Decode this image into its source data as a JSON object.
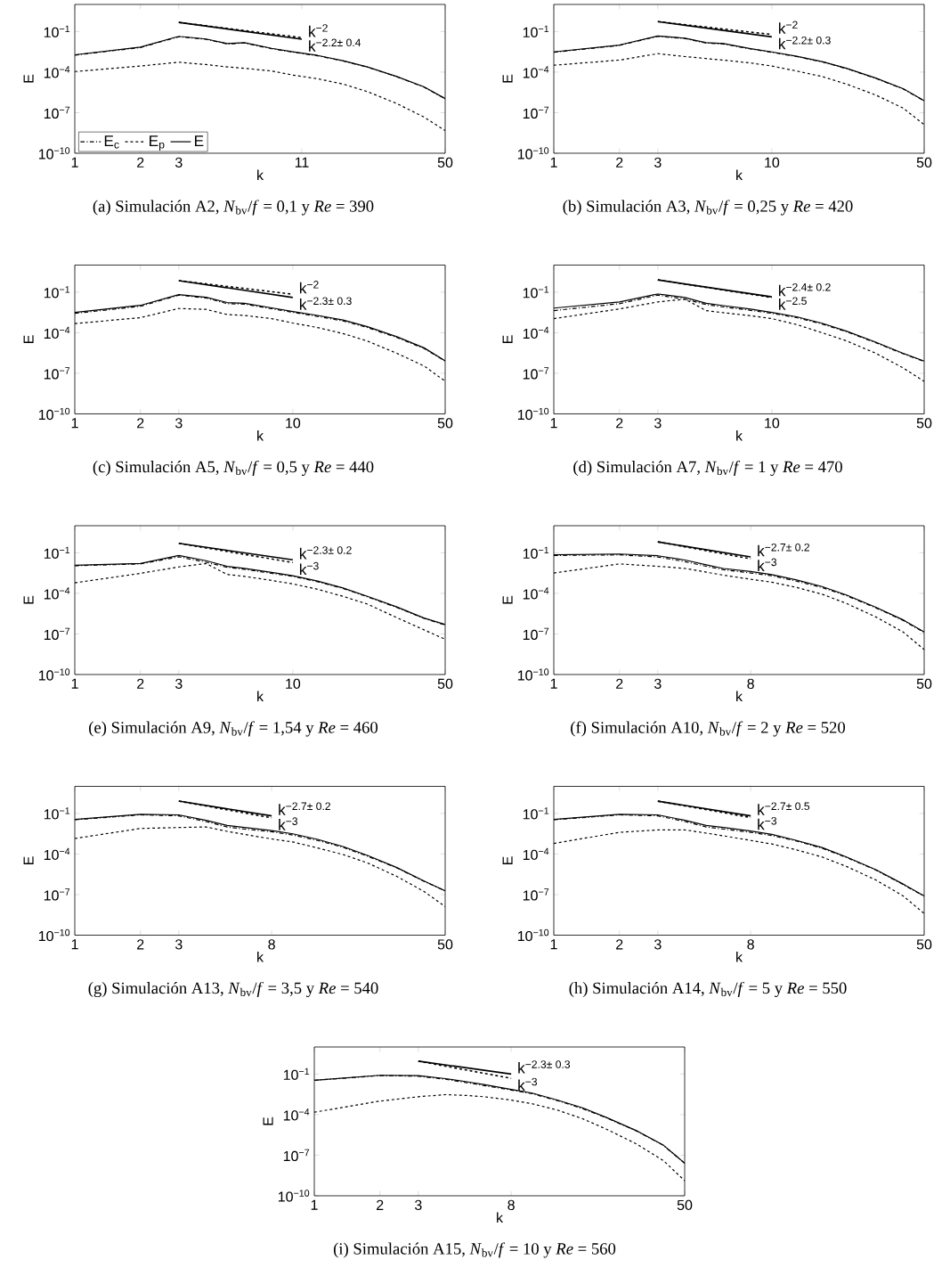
{
  "chart_data": [
    {
      "type": "line",
      "xlabel": "k",
      "ylabel": "E",
      "log": "xy",
      "xlim": [
        1,
        50
      ],
      "ylim": [
        1e-10,
        10
      ],
      "xticks": [
        1,
        2,
        3,
        11,
        50
      ],
      "yticks": [
        {
          "value": 1e-10,
          "label": "10$^{−10}$"
        },
        {
          "value": 1e-07,
          "label": "10$^{−7}$"
        },
        {
          "value": 0.0001,
          "label": "10$^{−4}$"
        },
        {
          "value": 0.1,
          "label": "10$^{−1}$"
        }
      ],
      "legend": "bottom left",
      "annotations": [
        "(a) Simulación A2, *N*$_{bv}$/*f* = 0,1 y *Re* = 390"
      ],
      "x": [
        1,
        2,
        3,
        4,
        5,
        6,
        8,
        10,
        13,
        17,
        22,
        30,
        40,
        50
      ],
      "series": [
        {
          "name": "E$_{c}$",
          "color": "#000000",
          "line_style": "dashdot",
          "values": [
            0.0018,
            0.0065,
            0.041,
            0.026,
            0.012,
            0.014,
            0.0053,
            0.003,
            0.0016,
            0.00066,
            0.00023,
            4.5e-05,
            7.7e-06,
            1.05e-06
          ]
        },
        {
          "name": "E$_{p}$",
          "color": "#000000",
          "line_style": "dotted",
          "values": [
            0.00011,
            0.00028,
            0.00054,
            0.00036,
            0.00024,
            0.00019,
            0.00012,
            6e-05,
            3.2e-05,
            1.3e-05,
            3.6e-06,
            4.7e-07,
            4.7e-08,
            4.7e-09
          ]
        },
        {
          "name": "E",
          "color": "#000000",
          "line_style": "solid",
          "values": [
            0.0019,
            0.007,
            0.044,
            0.028,
            0.013,
            0.015,
            0.0057,
            0.0032,
            0.0017,
            0.0007,
            0.00024,
            4.7e-05,
            8e-06,
            1.1e-06
          ]
        },
        {
          "name": "k$^{−2}$",
          "color": "#000000",
          "line_style": "dotted",
          "x": [
            3,
            11
          ],
          "values": [
            0.47,
            0.035
          ]
        },
        {
          "name": "k$^{−2.2± 0.4}$",
          "color": "#000000",
          "line_style": "solid",
          "x": [
            3,
            11
          ],
          "values": [
            0.47,
            0.027
          ]
        }
      ]
    },
    {
      "type": "line",
      "xlabel": "k",
      "ylabel": "E",
      "log": "xy",
      "xlim": [
        1,
        50
      ],
      "ylim": [
        1e-10,
        10
      ],
      "xticks": [
        1,
        2,
        3,
        10,
        50
      ],
      "yticks": [
        {
          "value": 1e-10,
          "label": "10$^{−10}$"
        },
        {
          "value": 1e-07,
          "label": "10$^{−7}$"
        },
        {
          "value": 0.0001,
          "label": "10$^{−4}$"
        },
        {
          "value": 0.1,
          "label": "10$^{−1}$"
        }
      ],
      "annotations": [
        "(b) Simulación A3, *N*$_{bv}$/*f* = 0,25 y *Re* = 420"
      ],
      "x": [
        1,
        2,
        3,
        4,
        5,
        6,
        8,
        10,
        13,
        17,
        22,
        30,
        40,
        50
      ],
      "series": [
        {
          "color": "#000000",
          "line_style": "dashdot",
          "values": [
            0.0029,
            0.0094,
            0.044,
            0.03,
            0.014,
            0.012,
            0.0051,
            0.0029,
            0.0014,
            0.00057,
            0.00018,
            3.4e-05,
            5.7e-06,
            7.4e-07
          ]
        },
        {
          "color": "#000000",
          "line_style": "dotted",
          "values": [
            0.00032,
            0.00077,
            0.0023,
            0.0014,
            0.001,
            0.00077,
            0.00047,
            0.00028,
            0.00012,
            4.7e-05,
            1.3e-05,
            2e-06,
            2.2e-07,
            1.3e-08
          ]
        },
        {
          "color": "#000000",
          "line_style": "solid",
          "values": [
            0.0031,
            0.01,
            0.047,
            0.032,
            0.015,
            0.013,
            0.0054,
            0.0031,
            0.0015,
            0.0006,
            0.00019,
            3.6e-05,
            6e-06,
            7.8e-07
          ]
        },
        {
          "name": "k$^{−2}$",
          "color": "#000000",
          "line_style": "dotted",
          "x": [
            3,
            10
          ],
          "values": [
            0.54,
            0.06
          ]
        },
        {
          "name": "k$^{−2.2± 0.3}$",
          "color": "#000000",
          "line_style": "solid",
          "x": [
            3,
            10
          ],
          "values": [
            0.54,
            0.04
          ]
        }
      ]
    },
    {
      "type": "line",
      "xlabel": "k",
      "ylabel": "E",
      "log": "xy",
      "xlim": [
        1,
        50
      ],
      "ylim": [
        1e-10,
        10
      ],
      "xticks": [
        1,
        2,
        3,
        10,
        50
      ],
      "yticks": [
        {
          "value": 1e-10,
          "label": "10$^{−10}$"
        },
        {
          "value": 1e-07,
          "label": "10$^{−7}$"
        },
        {
          "value": 0.0001,
          "label": "10$^{−4}$"
        },
        {
          "value": 0.1,
          "label": "10$^{−1}$"
        }
      ],
      "annotations": [
        "(c) Simulación A5, *N*$_{bv}$/*f* = 0,5 y *Re* = 440"
      ],
      "x": [
        1,
        2,
        3,
        4,
        5,
        6,
        8,
        10,
        13,
        17,
        22,
        30,
        40,
        50
      ],
      "series": [
        {
          "color": "#000000",
          "line_style": "dashdot",
          "values": [
            0.0027,
            0.0089,
            0.06,
            0.037,
            0.014,
            0.013,
            0.0059,
            0.0032,
            0.0016,
            0.00074,
            0.00024,
            4.4e-05,
            6.9e-06,
            8e-07
          ]
        },
        {
          "color": "#000000",
          "line_style": "dotted",
          "values": [
            0.00047,
            0.0013,
            0.0062,
            0.0053,
            0.0022,
            0.0019,
            0.0011,
            0.00052,
            0.00024,
            8.7e-05,
            2.4e-05,
            3e-06,
            3.5e-07,
            2.6e-08
          ]
        },
        {
          "color": "#000000",
          "line_style": "solid",
          "values": [
            0.0032,
            0.0105,
            0.066,
            0.042,
            0.017,
            0.015,
            0.0069,
            0.0037,
            0.0019,
            0.00087,
            0.00028,
            5.1e-05,
            7.6e-06,
            8.3e-07
          ]
        },
        {
          "name": "k$^{−2}$",
          "color": "#000000",
          "line_style": "dotted",
          "x": [
            3,
            10
          ],
          "values": [
            0.71,
            0.07
          ]
        },
        {
          "name": "k$^{−2.3± 0.3}$",
          "color": "#000000",
          "line_style": "solid",
          "x": [
            3,
            10
          ],
          "values": [
            0.71,
            0.04
          ]
        }
      ]
    },
    {
      "type": "line",
      "xlabel": "k",
      "ylabel": "E",
      "log": "xy",
      "xlim": [
        1,
        50
      ],
      "ylim": [
        1e-10,
        10
      ],
      "xticks": [
        1,
        2,
        3,
        10,
        50
      ],
      "yticks": [
        {
          "value": 1e-10,
          "label": "10$^{−10}$"
        },
        {
          "value": 1e-07,
          "label": "10$^{−7}$"
        },
        {
          "value": 0.0001,
          "label": "10$^{−4}$"
        },
        {
          "value": 0.1,
          "label": "10$^{−1}$"
        }
      ],
      "annotations": [
        "(d) Simulación A7, *N*$_{bv}$/*f* = 1 y *Re* = 470"
      ],
      "x": [
        1,
        2,
        3,
        4,
        5,
        6,
        8,
        10,
        13,
        17,
        22,
        30,
        40,
        50
      ],
      "series": [
        {
          "color": "#000000",
          "line_style": "dashdot",
          "values": [
            0.0043,
            0.014,
            0.06,
            0.03,
            0.012,
            0.008,
            0.0045,
            0.0027,
            0.0013,
            0.00044,
            0.00012,
            1.8e-05,
            2.8e-06,
            7.5e-07
          ]
        },
        {
          "color": "#000000",
          "line_style": "dotted",
          "values": [
            0.0011,
            0.0057,
            0.019,
            0.03,
            0.0043,
            0.003,
            0.0018,
            0.0011,
            0.0004,
            0.0001,
            2.5e-05,
            3e-06,
            2.5e-07,
            2.5e-08
          ]
        },
        {
          "color": "#000000",
          "line_style": "solid",
          "values": [
            0.0066,
            0.019,
            0.074,
            0.04,
            0.015,
            0.01,
            0.0055,
            0.0032,
            0.0015,
            0.0005,
            0.00013,
            2e-05,
            3e-06,
            8e-07
          ]
        },
        {
          "name": "k$^{−2.4± 0.2}$",
          "color": "#000000",
          "line_style": "solid",
          "x": [
            3,
            10
          ],
          "values": [
            0.8,
            0.045
          ]
        },
        {
          "name": "k$^{−2.5}$",
          "color": "#000000",
          "line_style": "dotted",
          "x": [
            3,
            10
          ],
          "values": [
            0.8,
            0.04
          ]
        }
      ]
    },
    {
      "type": "line",
      "xlabel": "k",
      "ylabel": "E",
      "log": "xy",
      "xlim": [
        1,
        50
      ],
      "ylim": [
        1e-10,
        10
      ],
      "xticks": [
        1,
        2,
        3,
        10,
        50
      ],
      "yticks": [
        {
          "value": 1e-10,
          "label": "10$^{−10}$"
        },
        {
          "value": 1e-07,
          "label": "10$^{−7}$"
        },
        {
          "value": 0.0001,
          "label": "10$^{−4}$"
        },
        {
          "value": 0.1,
          "label": "10$^{−1}$"
        }
      ],
      "annotations": [
        "(e) Simulación A9, *N*$_{bv}$/*f* = 1,54 y *Re* = 460"
      ],
      "x": [
        1,
        2,
        3,
        4,
        5,
        6,
        8,
        10,
        13,
        17,
        22,
        30,
        40,
        50
      ],
      "series": [
        {
          "color": "#000000",
          "line_style": "dashdot",
          "values": [
            0.011,
            0.015,
            0.05,
            0.02,
            0.0085,
            0.006,
            0.003,
            0.0018,
            0.00072,
            0.00023,
            5.5e-05,
            9e-06,
            1.4e-06,
            4.6e-07
          ]
        },
        {
          "color": "#000000",
          "line_style": "dotted",
          "values": [
            0.0006,
            0.003,
            0.009,
            0.016,
            0.0025,
            0.0018,
            0.0009,
            0.0005,
            0.0002,
            6e-05,
            1.6e-05,
            1.6e-06,
            2e-07,
            4e-08
          ]
        },
        {
          "color": "#000000",
          "line_style": "solid",
          "values": [
            0.012,
            0.016,
            0.063,
            0.026,
            0.01,
            0.007,
            0.0035,
            0.002,
            0.0008,
            0.00025,
            6e-05,
            1e-05,
            1.5e-06,
            5e-07
          ]
        },
        {
          "name": "k$^{−2.3± 0.2}$",
          "color": "#000000",
          "line_style": "solid",
          "x": [
            3,
            10
          ],
          "values": [
            0.5,
            0.03
          ]
        },
        {
          "name": "k$^{−3}$",
          "color": "#000000",
          "line_style": "dotted",
          "x": [
            3,
            10
          ],
          "values": [
            0.5,
            0.019
          ]
        }
      ]
    },
    {
      "type": "line",
      "xlabel": "k",
      "ylabel": "E",
      "log": "xy",
      "xlim": [
        1,
        50
      ],
      "ylim": [
        1e-10,
        10
      ],
      "xticks": [
        1,
        2,
        3,
        8,
        50
      ],
      "yticks": [
        {
          "value": 1e-10,
          "label": "10$^{−10}$"
        },
        {
          "value": 1e-07,
          "label": "10$^{−7}$"
        },
        {
          "value": 0.0001,
          "label": "10$^{−4}$"
        },
        {
          "value": 0.1,
          "label": "10$^{−1}$"
        }
      ],
      "annotations": [
        "(f) Simulación A10, *N*$_{bv}$/*f* = 2 y *Re* = 520"
      ],
      "x": [
        1,
        2,
        3,
        4,
        5,
        6,
        8,
        10,
        13,
        17,
        22,
        30,
        40,
        50
      ],
      "series": [
        {
          "color": "#000000",
          "line_style": "dashdot",
          "values": [
            0.063,
            0.07,
            0.049,
            0.022,
            0.01,
            0.0056,
            0.0032,
            0.002,
            0.00079,
            0.00027,
            6.7e-05,
            8.5e-06,
            1e-06,
            1.3e-07
          ]
        },
        {
          "color": "#000000",
          "line_style": "dotted",
          "values": [
            0.0032,
            0.015,
            0.01,
            0.0069,
            0.0037,
            0.0022,
            0.0011,
            0.00067,
            0.00027,
            8.7e-05,
            1.8e-05,
            1.8e-06,
            1.4e-07,
            6.9e-09
          ]
        },
        {
          "color": "#000000",
          "line_style": "solid",
          "values": [
            0.07,
            0.081,
            0.06,
            0.029,
            0.013,
            0.0069,
            0.0041,
            0.0024,
            0.00098,
            0.00032,
            7.5e-05,
            9.4e-06,
            1.1e-06,
            1.4e-07
          ]
        },
        {
          "name": "k$^{−2.7± 0.2}$",
          "color": "#000000",
          "line_style": "solid",
          "x": [
            3,
            8
          ],
          "values": [
            0.64,
            0.049
          ]
        },
        {
          "name": "k$^{−3}$",
          "color": "#000000",
          "line_style": "dotted",
          "x": [
            3,
            8
          ],
          "values": [
            0.64,
            0.036
          ]
        }
      ]
    },
    {
      "type": "line",
      "xlabel": "k",
      "ylabel": "E",
      "log": "xy",
      "xlim": [
        1,
        50
      ],
      "ylim": [
        1e-10,
        10
      ],
      "xticks": [
        1,
        2,
        3,
        8,
        50
      ],
      "yticks": [
        {
          "value": 1e-10,
          "label": "10$^{−10}$"
        },
        {
          "value": 1e-07,
          "label": "10$^{−7}$"
        },
        {
          "value": 0.0001,
          "label": "10$^{−4}$"
        },
        {
          "value": 0.1,
          "label": "10$^{−1}$"
        }
      ],
      "annotations": [
        "(g) Simulación A13, *N*$_{bv}$/*f* = 3,5 y *Re* = 540"
      ],
      "x": [
        1,
        2,
        3,
        4,
        5,
        6,
        8,
        10,
        13,
        17,
        22,
        30,
        40,
        50
      ],
      "series": [
        {
          "color": "#000000",
          "line_style": "dashdot",
          "values": [
            0.034,
            0.078,
            0.066,
            0.025,
            0.01,
            0.0069,
            0.0044,
            0.0025,
            0.001,
            0.00031,
            6.9e-05,
            9.5e-06,
            9.5e-07,
            1.9e-07
          ]
        },
        {
          "color": "#000000",
          "line_style": "dotted",
          "values": [
            0.0014,
            0.0077,
            0.0091,
            0.01,
            0.0047,
            0.0028,
            0.0013,
            0.00077,
            0.00028,
            9.1e-05,
            2.2e-05,
            2.2e-06,
            1.7e-07,
            1.3e-08
          ]
        },
        {
          "color": "#000000",
          "line_style": "solid",
          "values": [
            0.036,
            0.085,
            0.078,
            0.031,
            0.013,
            0.0091,
            0.0054,
            0.0031,
            0.0012,
            0.00036,
            7.8e-05,
            1e-05,
            1e-06,
            1.9e-07
          ]
        },
        {
          "name": "k$^{−2.7± 0.2}$",
          "color": "#000000",
          "line_style": "solid",
          "x": [
            3,
            8
          ],
          "values": [
            0.81,
            0.066
          ]
        },
        {
          "name": "k$^{−3}$",
          "color": "#000000",
          "line_style": "dotted",
          "x": [
            3,
            8
          ],
          "values": [
            0.81,
            0.047
          ]
        }
      ]
    },
    {
      "type": "line",
      "xlabel": "k",
      "ylabel": "E",
      "log": "xy",
      "xlim": [
        1,
        50
      ],
      "ylim": [
        1e-10,
        10
      ],
      "xticks": [
        1,
        2,
        3,
        8,
        50
      ],
      "yticks": [
        {
          "value": 1e-10,
          "label": "10$^{−10}$"
        },
        {
          "value": 1e-07,
          "label": "10$^{−7}$"
        },
        {
          "value": 0.0001,
          "label": "10$^{−4}$"
        },
        {
          "value": 0.1,
          "label": "10$^{−1}$"
        }
      ],
      "annotations": [
        "(h) Simulación A14, *N*$_{bv}$/*f* = 5 y *Re* = 550"
      ],
      "x": [
        1,
        2,
        3,
        4,
        5,
        6,
        8,
        10,
        13,
        17,
        22,
        30,
        40,
        50
      ],
      "series": [
        {
          "color": "#000000",
          "line_style": "dashdot",
          "values": [
            0.034,
            0.078,
            0.066,
            0.025,
            0.01,
            0.0069,
            0.004,
            0.0023,
            0.0009,
            0.00027,
            5.5e-05,
            6.5e-06,
            5.6e-07,
            7.5e-08
          ]
        },
        {
          "color": "#000000",
          "line_style": "dotted",
          "values": [
            0.0006,
            0.004,
            0.006,
            0.006,
            0.0035,
            0.0022,
            0.001,
            0.00055,
            0.0002,
            6e-05,
            1.2e-05,
            1.2e-06,
            8e-08,
            4e-09
          ]
        },
        {
          "color": "#000000",
          "line_style": "solid",
          "values": [
            0.036,
            0.085,
            0.078,
            0.031,
            0.013,
            0.0091,
            0.005,
            0.0028,
            0.001,
            0.0003,
            6e-05,
            7e-06,
            6e-07,
            8e-08
          ]
        },
        {
          "name": "k$^{−2.7± 0.5}$",
          "color": "#000000",
          "line_style": "solid",
          "x": [
            3,
            8
          ],
          "values": [
            0.8,
            0.066
          ]
        },
        {
          "name": "k$^{−3}$",
          "color": "#000000",
          "line_style": "dotted",
          "x": [
            3,
            8
          ],
          "values": [
            0.8,
            0.05
          ]
        }
      ]
    },
    {
      "type": "line",
      "xlabel": "k",
      "ylabel": "E",
      "log": "xy",
      "xlim": [
        1,
        50
      ],
      "ylim": [
        1e-10,
        10
      ],
      "xticks": [
        1,
        2,
        3,
        8,
        50
      ],
      "yticks": [
        {
          "value": 1e-10,
          "label": "10$^{−10}$"
        },
        {
          "value": 1e-07,
          "label": "10$^{−7}$"
        },
        {
          "value": 0.0001,
          "label": "10$^{−4}$"
        },
        {
          "value": 0.1,
          "label": "10$^{−1}$"
        }
      ],
      "annotations": [
        "(i) Simulación A15, *N*$_{bv}$/*f* = 10 y *Re* = 560"
      ],
      "x": [
        1,
        2,
        3,
        4,
        5,
        6,
        8,
        10,
        13,
        17,
        22,
        30,
        40,
        50
      ],
      "series": [
        {
          "color": "#000000",
          "line_style": "dashdot",
          "values": [
            0.034,
            0.077,
            0.069,
            0.041,
            0.023,
            0.014,
            0.0066,
            0.0035,
            0.0011,
            0.00028,
            5.6e-05,
            6.3e-06,
            5.2e-07,
            2.5e-08
          ]
        },
        {
          "color": "#000000",
          "line_style": "dotted",
          "values": [
            0.00015,
            0.001,
            0.0021,
            0.003,
            0.0026,
            0.0021,
            0.0012,
            0.00063,
            0.00022,
            5e-05,
            8.1e-06,
            6.9e-07,
            3.9e-08,
            1.3e-09
          ]
        },
        {
          "color": "#000000",
          "line_style": "solid",
          "values": [
            0.035,
            0.081,
            0.077,
            0.046,
            0.027,
            0.017,
            0.0073,
            0.0039,
            0.0012,
            0.00032,
            5.9e-05,
            6.6e-06,
            5.4e-07,
            2.6e-08
          ]
        },
        {
          "name": "k$^{−2.3± 0.3}$",
          "color": "#000000",
          "line_style": "solid",
          "x": [
            3,
            8
          ],
          "values": [
            0.9,
            0.1
          ]
        },
        {
          "name": "k$^{−3}$",
          "color": "#000000",
          "line_style": "dotted",
          "x": [
            3,
            8
          ],
          "values": [
            0.9,
            0.048
          ]
        }
      ]
    }
  ]
}
